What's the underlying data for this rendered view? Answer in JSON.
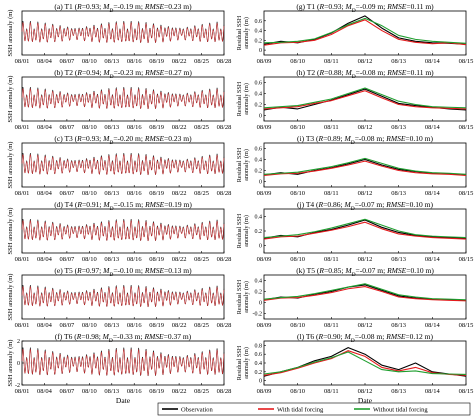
{
  "chart_data": [
    {
      "type": "line",
      "panel": "left",
      "title": "(a) T1 (R=0.93; M_D=-0.19 m; RMSE=0.23 m)",
      "title_parts": {
        "label": "(a) T1",
        "r": "0.93",
        "md": "-0.19 m",
        "rmse": "0.23 m"
      },
      "ylabel": "SSH anomaly (m)",
      "xticks": [
        "08/01",
        "08/04",
        "08/07",
        "08/10",
        "08/13",
        "08/16",
        "08/19",
        "08/22",
        "08/25",
        "08/28"
      ],
      "ylim": [
        -2,
        2
      ],
      "amplitude": 1.0
    },
    {
      "type": "line",
      "panel": "left",
      "title": "(b) T2 (R=0.94; M_D=-0.23 m; RMSE=0.27 m)",
      "title_parts": {
        "label": "(b) T2",
        "r": "0.94",
        "md": "-0.23 m",
        "rmse": "0.27 m"
      },
      "ylabel": "SSH anomaly (m)",
      "xticks": [
        "08/01",
        "08/04",
        "08/07",
        "08/10",
        "08/13",
        "08/16",
        "08/19",
        "08/22",
        "08/25",
        "08/28"
      ],
      "ylim": [
        -2,
        2
      ],
      "amplitude": 1.0
    },
    {
      "type": "line",
      "panel": "left",
      "title": "(c) T3 (R=0.93; M_D=-0.20 m; RMSE=0.23 m)",
      "title_parts": {
        "label": "(c) T3",
        "r": "0.93",
        "md": "-0.20 m",
        "rmse": "0.23 m"
      },
      "ylabel": "SSH anomaly (m)",
      "xticks": [
        "08/01",
        "08/04",
        "08/07",
        "08/10",
        "08/13",
        "08/16",
        "08/19",
        "08/22",
        "08/25",
        "08/28"
      ],
      "ylim": [
        -2,
        2
      ],
      "amplitude": 1.0
    },
    {
      "type": "line",
      "panel": "left",
      "title": "(d) T4 (R=0.91; M_D=-0.15 m; RMSE=0.19 m)",
      "title_parts": {
        "label": "(d) T4",
        "r": "0.91",
        "md": "-0.15 m",
        "rmse": "0.19 m"
      },
      "ylabel": "SSH anomaly (m)",
      "xticks": [
        "08/01",
        "08/04",
        "08/07",
        "08/10",
        "08/13",
        "08/16",
        "08/19",
        "08/22",
        "08/25",
        "08/28"
      ],
      "ylim": [
        -2,
        2
      ],
      "amplitude": 1.0
    },
    {
      "type": "line",
      "panel": "left",
      "title": "(e) T5 (R=0.97; M_D=-0.10 m; RMSE=0.13 m)",
      "title_parts": {
        "label": "(e) T5",
        "r": "0.97",
        "md": "-0.10 m",
        "rmse": "0.13 m"
      },
      "ylabel": "SSH anomaly (m)",
      "xticks": [
        "08/01",
        "08/04",
        "08/07",
        "08/10",
        "08/13",
        "08/16",
        "08/19",
        "08/22",
        "08/25",
        "08/28"
      ],
      "ylim": [
        -2,
        2
      ],
      "amplitude": 1.0
    },
    {
      "type": "line",
      "panel": "left",
      "title": "(f) T6 (R=0.98; M_D=-0.33 m; RMSE=0.37 m)",
      "title_parts": {
        "label": "(f) T6",
        "r": "0.98",
        "md": "-0.33 m",
        "rmse": "0.37 m"
      },
      "ylabel": "SSH anomaly (m)",
      "xlabel": "Date",
      "xticks": [
        "08/01",
        "08/04",
        "08/07",
        "08/10",
        "08/13",
        "08/16",
        "08/19",
        "08/22",
        "08/25",
        "08/28"
      ],
      "yticks": [
        "-2",
        "0",
        "2"
      ],
      "ylim": [
        -2,
        2
      ],
      "amplitude": 1.3
    },
    {
      "type": "line",
      "panel": "right",
      "title": "(g) T1 (R=0.93; M_D=-0.09 m; RMSE=0.11 m)",
      "title_parts": {
        "label": "(g) T1",
        "r": "0.93",
        "md": "-0.09 m",
        "rmse": "0.11 m"
      },
      "ylabel": "Residual SSH anomaly (m)",
      "xticks": [
        "08/09",
        "08/10",
        "08/11",
        "08/12",
        "08/13",
        "08/14",
        "08/15"
      ],
      "yticks": [
        "0.6",
        "0.4",
        "0.2",
        "0"
      ],
      "ylim": [
        -0.1,
        0.8
      ],
      "x": [
        9,
        9.5,
        10,
        10.5,
        11,
        11.5,
        12,
        12.5,
        13,
        13.5,
        14,
        14.5,
        15
      ],
      "series": [
        {
          "name": "Observation",
          "color": "#000000",
          "values": [
            0.12,
            0.18,
            0.15,
            0.22,
            0.35,
            0.55,
            0.7,
            0.45,
            0.25,
            0.18,
            0.15,
            0.14,
            0.12
          ]
        },
        {
          "name": "With tidal forcing",
          "color": "#e41a1c",
          "values": [
            0.1,
            0.15,
            0.16,
            0.2,
            0.32,
            0.5,
            0.62,
            0.4,
            0.22,
            0.16,
            0.13,
            0.15,
            0.11
          ]
        },
        {
          "name": "Without tidal forcing",
          "color": "#1f9e2f",
          "values": [
            0.15,
            0.16,
            0.18,
            0.23,
            0.36,
            0.52,
            0.65,
            0.5,
            0.3,
            0.22,
            0.18,
            0.16,
            0.14
          ]
        }
      ]
    },
    {
      "type": "line",
      "panel": "right",
      "title": "(h) T2 (R=0.88; M_D=-0.08 m; RMSE=0.11 m)",
      "title_parts": {
        "label": "(h) T2",
        "r": "0.88",
        "md": "-0.08 m",
        "rmse": "0.11 m"
      },
      "ylabel": "Residual SSH anomaly (m)",
      "xticks": [
        "08/09",
        "08/10",
        "08/11",
        "08/12",
        "08/13",
        "08/14",
        "08/15"
      ],
      "yticks": [
        "0.6",
        "0.4",
        "0.2",
        "0"
      ],
      "ylim": [
        -0.1,
        0.7
      ],
      "x": [
        9,
        9.5,
        10,
        10.5,
        11,
        11.5,
        12,
        12.5,
        13,
        13.5,
        14,
        14.5,
        15
      ],
      "series": [
        {
          "name": "Observation",
          "color": "#000000",
          "values": [
            0.1,
            0.15,
            0.12,
            0.2,
            0.28,
            0.38,
            0.48,
            0.35,
            0.22,
            0.18,
            0.15,
            0.12,
            0.1
          ]
        },
        {
          "name": "With tidal forcing",
          "color": "#e41a1c",
          "values": [
            0.12,
            0.14,
            0.16,
            0.22,
            0.27,
            0.36,
            0.45,
            0.32,
            0.2,
            0.16,
            0.14,
            0.13,
            0.12
          ]
        },
        {
          "name": "Without tidal forcing",
          "color": "#1f9e2f",
          "values": [
            0.14,
            0.16,
            0.18,
            0.24,
            0.3,
            0.4,
            0.5,
            0.38,
            0.26,
            0.2,
            0.16,
            0.15,
            0.14
          ]
        }
      ]
    },
    {
      "type": "line",
      "panel": "right",
      "title": "(i) T3 (R=0.89; M_D=-0.08 m; RMSE=0.10 m)",
      "title_parts": {
        "label": "(i) T3",
        "r": "0.89",
        "md": "-0.08 m",
        "rmse": "0.10 m"
      },
      "ylabel": "Residual SSH anomaly (m)",
      "xticks": [
        "08/09",
        "08/10",
        "08/11",
        "08/12",
        "08/13",
        "08/14",
        "08/15"
      ],
      "yticks": [
        "0.6",
        "0.4",
        "0.2",
        "0"
      ],
      "ylim": [
        -0.1,
        0.7
      ],
      "x": [
        9,
        9.5,
        10,
        10.5,
        11,
        11.5,
        12,
        12.5,
        13,
        13.5,
        14,
        14.5,
        15
      ],
      "series": [
        {
          "name": "Observation",
          "color": "#000000",
          "values": [
            0.12,
            0.16,
            0.13,
            0.2,
            0.25,
            0.32,
            0.4,
            0.3,
            0.22,
            0.18,
            0.15,
            0.14,
            0.12
          ]
        },
        {
          "name": "With tidal forcing",
          "color": "#e41a1c",
          "values": [
            0.11,
            0.14,
            0.15,
            0.19,
            0.24,
            0.3,
            0.37,
            0.28,
            0.2,
            0.16,
            0.14,
            0.13,
            0.11
          ]
        },
        {
          "name": "Without tidal forcing",
          "color": "#1f9e2f",
          "values": [
            0.13,
            0.15,
            0.17,
            0.22,
            0.27,
            0.34,
            0.42,
            0.33,
            0.24,
            0.19,
            0.16,
            0.15,
            0.13
          ]
        }
      ]
    },
    {
      "type": "line",
      "panel": "right",
      "title": "(j) T4 (R=0.86; M_D=-0.07 m; RMSE=0.10 m)",
      "title_parts": {
        "label": "(j) T4",
        "r": "0.86",
        "md": "-0.07 m",
        "rmse": "0.10 m"
      },
      "ylabel": "Residual SSH anomaly (m)",
      "xticks": [
        "08/09",
        "08/10",
        "08/11",
        "08/12",
        "08/13",
        "08/14",
        "08/15"
      ],
      "yticks": [
        "0.4",
        "0.2",
        "0"
      ],
      "ylim": [
        -0.1,
        0.5
      ],
      "x": [
        9,
        9.5,
        10,
        10.5,
        11,
        11.5,
        12,
        12.5,
        13,
        13.5,
        14,
        14.5,
        15
      ],
      "series": [
        {
          "name": "Observation",
          "color": "#000000",
          "values": [
            0.1,
            0.14,
            0.12,
            0.18,
            0.22,
            0.28,
            0.35,
            0.25,
            0.18,
            0.14,
            0.12,
            0.11,
            0.1
          ]
        },
        {
          "name": "With tidal forcing",
          "color": "#e41a1c",
          "values": [
            0.09,
            0.12,
            0.13,
            0.17,
            0.21,
            0.26,
            0.32,
            0.23,
            0.16,
            0.13,
            0.11,
            0.1,
            0.09
          ]
        },
        {
          "name": "Without tidal forcing",
          "color": "#1f9e2f",
          "values": [
            0.11,
            0.13,
            0.15,
            0.19,
            0.24,
            0.3,
            0.36,
            0.28,
            0.2,
            0.15,
            0.13,
            0.12,
            0.11
          ]
        }
      ]
    },
    {
      "type": "line",
      "panel": "right",
      "title": "(k) T5 (R=0.85; M_D=-0.07 m; RMSE=0.10 m)",
      "title_parts": {
        "label": "(k) T5",
        "r": "0.85",
        "md": "-0.07 m",
        "rmse": "0.10 m"
      },
      "ylabel": "Residual SSH anomaly (m)",
      "xticks": [
        "08/09",
        "08/10",
        "08/11",
        "08/12",
        "08/13",
        "08/14",
        "08/15"
      ],
      "yticks": [
        "0.4",
        "0.2",
        "0",
        "-0.2"
      ],
      "ylim": [
        -0.3,
        0.5
      ],
      "x": [
        9,
        9.5,
        10,
        10.5,
        11,
        11.5,
        12,
        12.5,
        13,
        13.5,
        14,
        14.5,
        15
      ],
      "series": [
        {
          "name": "Observation",
          "color": "#000000",
          "values": [
            0.05,
            0.1,
            0.08,
            0.15,
            0.2,
            0.28,
            0.32,
            0.22,
            0.12,
            0.08,
            0.06,
            0.05,
            0.04
          ]
        },
        {
          "name": "With tidal forcing",
          "color": "#e41a1c",
          "values": [
            0.04,
            0.08,
            0.09,
            0.13,
            0.18,
            0.25,
            0.29,
            0.2,
            0.1,
            0.07,
            0.05,
            0.04,
            0.03
          ]
        },
        {
          "name": "Without tidal forcing",
          "color": "#1f9e2f",
          "values": [
            0.06,
            0.09,
            0.11,
            0.16,
            0.22,
            0.28,
            0.34,
            0.24,
            0.14,
            0.1,
            0.07,
            0.06,
            0.05
          ]
        }
      ]
    },
    {
      "type": "line",
      "panel": "right",
      "title": "(l) T6 (R=0.90; M_D=-0.08 m; RMSE=0.12 m)",
      "title_parts": {
        "label": "(l) T6",
        "r": "0.90",
        "md": "-0.08 m",
        "rmse": "0.12 m"
      },
      "ylabel": "Residual SSH anomaly (m)",
      "xlabel": "Date",
      "xticks": [
        "08/09",
        "08/10",
        "08/11",
        "08/12",
        "08/13",
        "08/14",
        "08/15"
      ],
      "yticks": [
        "0.8",
        "0.6",
        "0.4",
        "0.2",
        "0"
      ],
      "ylim": [
        -0.1,
        0.9
      ],
      "x": [
        9,
        9.5,
        10,
        10.5,
        11,
        11.5,
        12,
        12.5,
        13,
        13.5,
        14,
        14.5,
        15
      ],
      "series": [
        {
          "name": "Observation",
          "color": "#000000",
          "values": [
            0.1,
            0.2,
            0.3,
            0.45,
            0.55,
            0.75,
            0.6,
            0.35,
            0.25,
            0.4,
            0.2,
            0.15,
            0.1
          ]
        },
        {
          "name": "With tidal forcing",
          "color": "#e41a1c",
          "values": [
            0.12,
            0.18,
            0.28,
            0.4,
            0.5,
            0.68,
            0.55,
            0.3,
            0.22,
            0.3,
            0.18,
            0.14,
            0.12
          ]
        },
        {
          "name": "Without tidal forcing",
          "color": "#1f9e2f",
          "values": [
            0.15,
            0.2,
            0.3,
            0.42,
            0.52,
            0.65,
            0.45,
            0.25,
            0.2,
            0.22,
            0.16,
            0.15,
            0.14
          ]
        }
      ]
    }
  ],
  "left_series_style": [
    {
      "name": "Observation",
      "color": "#000000"
    },
    {
      "name": "With tidal forcing",
      "color": "#e41a1c"
    }
  ],
  "legend": {
    "placement": "bottom-right",
    "items": [
      {
        "name": "Observation",
        "color": "#000000"
      },
      {
        "name": "With tidal forcing",
        "color": "#e41a1c"
      },
      {
        "name": "Without tidal forcing",
        "color": "#1f9e2f"
      }
    ]
  }
}
